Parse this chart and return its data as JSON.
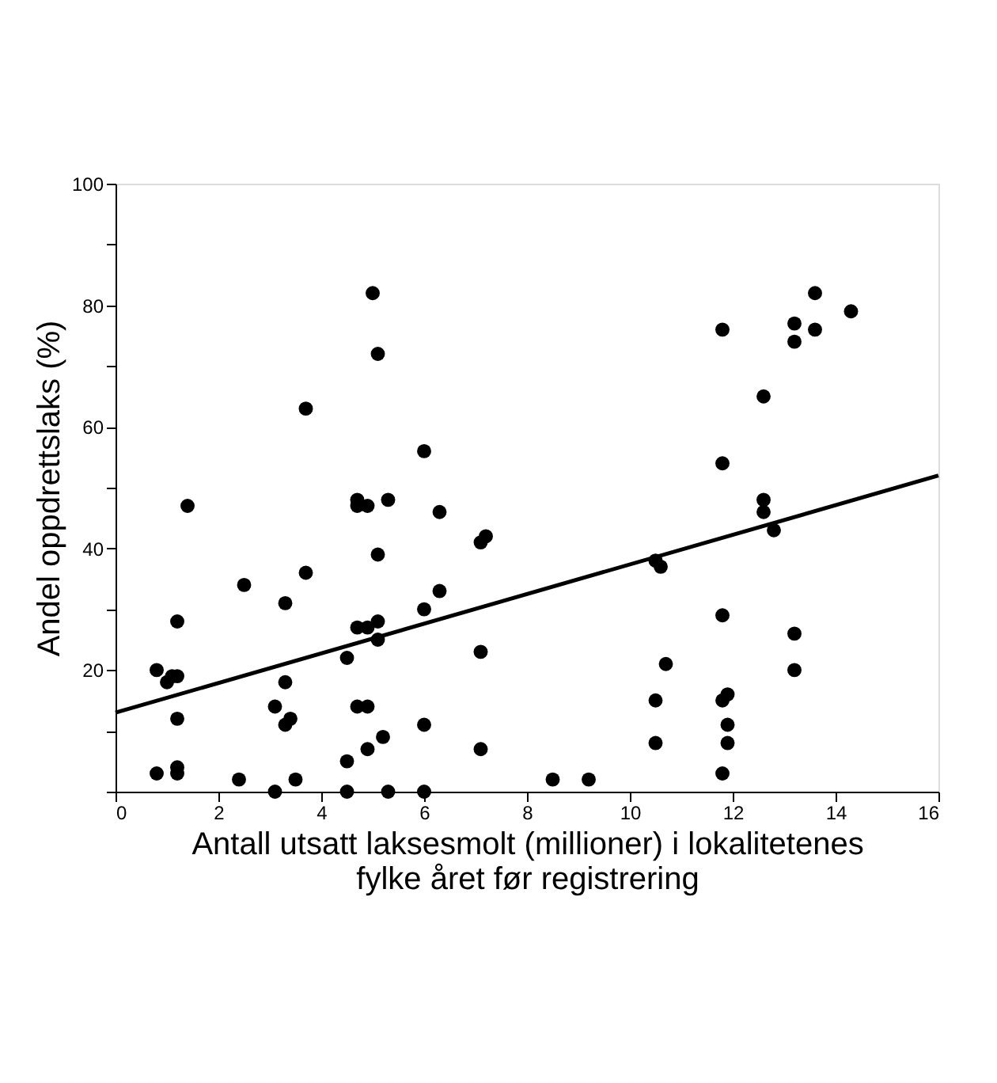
{
  "chart_data": {
    "type": "scatter",
    "xlabel": "Antall utsatt laksesmolt (millioner) i lokalitetenes\nfylke året før registrering",
    "ylabel": "Andel oppdrettslaks (%)",
    "xlim": [
      0,
      16
    ],
    "ylim": [
      0,
      100
    ],
    "xticks": [
      0,
      2,
      4,
      6,
      8,
      10,
      12,
      14,
      16
    ],
    "yticks": [
      {
        "value": 0,
        "label": null
      },
      {
        "value": 10,
        "label": null
      },
      20,
      {
        "value": 30,
        "label": null
      },
      40,
      {
        "value": 50,
        "label": null
      },
      60,
      {
        "value": 70,
        "label": null
      },
      80,
      {
        "value": 90,
        "label": null
      },
      100
    ],
    "grid": false,
    "marker": "circle",
    "series": [
      {
        "color": "#000000",
        "x": [
          0.8,
          0.8,
          1.0,
          1.1,
          1.2,
          1.2,
          1.2,
          1.2,
          1.2,
          1.4,
          2.5,
          2.4,
          3.1,
          3.3,
          3.3,
          3.3,
          3.4,
          3.5,
          3.1,
          3.7,
          3.7,
          4.5,
          4.5,
          4.5,
          4.7,
          4.7,
          4.7,
          4.7,
          4.9,
          4.9,
          4.9,
          4.9,
          5.0,
          5.1,
          5.1,
          5.1,
          5.1,
          5.2,
          5.3,
          5.3,
          6.0,
          6.0,
          6.0,
          6.0,
          6.3,
          6.3,
          7.1,
          7.2,
          7.1,
          7.1,
          8.5,
          9.2,
          10.5,
          10.6,
          10.5,
          10.5,
          10.7,
          11.8,
          11.8,
          11.8,
          11.8,
          11.9,
          11.9,
          11.9,
          11.8,
          12.6,
          12.6,
          12.6,
          12.8,
          13.2,
          13.2,
          13.2,
          13.2,
          13.6,
          13.6,
          14.3
        ],
        "values": [
          20,
          3,
          18,
          19,
          19,
          28,
          12,
          4,
          3,
          47,
          34,
          2,
          14,
          11,
          18,
          31,
          12,
          2,
          0,
          63,
          36,
          22,
          5,
          0,
          48,
          47,
          27,
          14,
          47,
          27,
          14,
          7,
          82,
          72,
          39,
          28,
          25,
          9,
          48,
          0,
          56,
          30,
          11,
          0,
          46,
          33,
          41,
          42,
          23,
          7,
          2,
          2,
          38,
          37,
          15,
          8,
          21,
          76,
          54,
          29,
          15,
          16,
          11,
          8,
          3,
          65,
          48,
          46,
          43,
          77,
          74,
          26,
          20,
          82,
          76,
          79
        ]
      },
      {
        "type": "line",
        "marker": "none",
        "color": "#000000",
        "x": [
          0,
          16
        ],
        "values": [
          13,
          52
        ]
      }
    ]
  }
}
